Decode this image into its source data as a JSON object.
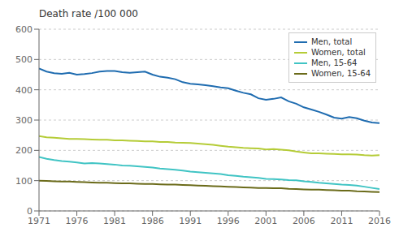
{
  "chart_data": {
    "type": "line",
    "title": "Death rate /100 000",
    "x": [
      1971,
      1972,
      1973,
      1974,
      1975,
      1976,
      1977,
      1978,
      1979,
      1980,
      1981,
      1982,
      1983,
      1984,
      1985,
      1986,
      1987,
      1988,
      1989,
      1990,
      1991,
      1992,
      1993,
      1994,
      1995,
      1996,
      1997,
      1998,
      1999,
      2000,
      2001,
      2002,
      2003,
      2004,
      2005,
      2006,
      2007,
      2008,
      2009,
      2010,
      2011,
      2012,
      2013,
      2014,
      2015,
      2016
    ],
    "series": [
      {
        "name": "Men, total",
        "color": "#1f6cb0",
        "values": [
          470,
          460,
          455,
          453,
          456,
          450,
          452,
          455,
          460,
          462,
          462,
          458,
          456,
          458,
          460,
          450,
          443,
          440,
          435,
          425,
          420,
          418,
          415,
          412,
          408,
          405,
          397,
          390,
          385,
          372,
          367,
          370,
          375,
          362,
          354,
          342,
          335,
          327,
          318,
          308,
          305,
          310,
          306,
          298,
          292,
          290
        ]
      },
      {
        "name": "Women, total",
        "color": "#b5cc37",
        "values": [
          247,
          243,
          242,
          240,
          238,
          238,
          237,
          236,
          235,
          235,
          233,
          233,
          232,
          231,
          230,
          230,
          228,
          228,
          226,
          225,
          224,
          222,
          220,
          218,
          215,
          212,
          210,
          208,
          207,
          206,
          203,
          204,
          202,
          200,
          196,
          193,
          190,
          190,
          189,
          188,
          187,
          187,
          186,
          184,
          183,
          184
        ]
      },
      {
        "name": "Men, 15-64",
        "color": "#40c4c4",
        "values": [
          178,
          172,
          168,
          165,
          163,
          160,
          157,
          158,
          157,
          155,
          153,
          150,
          149,
          147,
          145,
          143,
          140,
          138,
          136,
          133,
          130,
          128,
          126,
          124,
          122,
          118,
          116,
          113,
          111,
          109,
          106,
          105,
          104,
          102,
          101,
          98,
          96,
          93,
          91,
          89,
          87,
          86,
          84,
          80,
          76,
          72
        ]
      },
      {
        "name": "Women, 15-64",
        "color": "#6b6b1a",
        "values": [
          100,
          99,
          98,
          97,
          97,
          96,
          95,
          94,
          93,
          93,
          92,
          91,
          91,
          90,
          89,
          89,
          88,
          87,
          87,
          86,
          85,
          84,
          83,
          82,
          81,
          80,
          79,
          78,
          77,
          76,
          76,
          75,
          75,
          73,
          72,
          71,
          70,
          70,
          69,
          68,
          67,
          67,
          65,
          64,
          63,
          62
        ]
      }
    ],
    "xlim": [
      1971,
      2016
    ],
    "xticks": [
      1971,
      1976,
      1981,
      1986,
      1991,
      1996,
      2001,
      2006,
      2011,
      2016
    ],
    "ylim": [
      0,
      600
    ],
    "yticks": [
      0,
      100,
      200,
      300,
      400,
      500,
      600
    ],
    "grid": true,
    "legend": "upper right"
  }
}
